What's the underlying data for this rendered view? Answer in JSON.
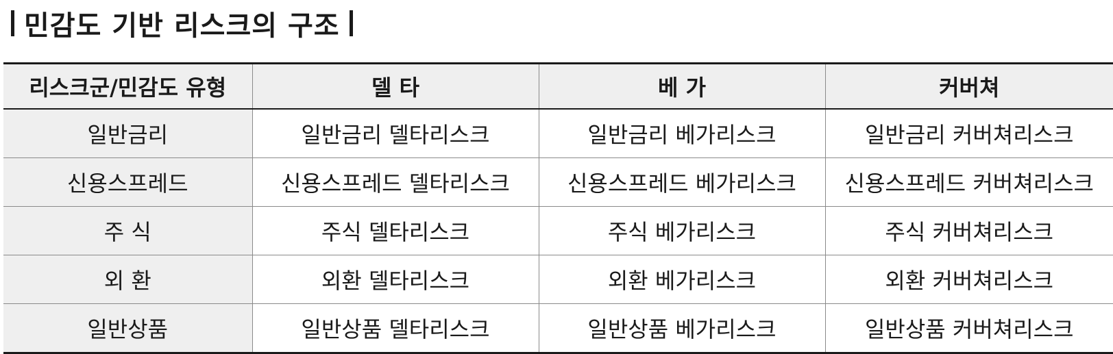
{
  "title": "민감도 기반 리스크의 구조",
  "table": {
    "headers": [
      "리스크군/민감도 유형",
      "델 타",
      "베 가",
      "커버쳐"
    ],
    "rows": [
      [
        "일반금리",
        "일반금리 델타리스크",
        "일반금리 베가리스크",
        "일반금리 커버쳐리스크"
      ],
      [
        "신용스프레드",
        "신용스프레드 델타리스크",
        "신용스프레드 베가리스크",
        "신용스프레드 커버쳐리스크"
      ],
      [
        "주 식",
        "주식 델타리스크",
        "주식 베가리스크",
        "주식 커버쳐리스크"
      ],
      [
        "외 환",
        "외환 델타리스크",
        "외환 베가리스크",
        "외환 커버쳐리스크"
      ],
      [
        "일반상품",
        "일반상품 델타리스크",
        "일반상품 베가리스크",
        "일반상품 커버쳐리스크"
      ]
    ]
  },
  "colors": {
    "header_bg": "#efefef",
    "label_bg": "#efefef",
    "text": "#1a1a1a",
    "rule": "#1a1a1a",
    "grid": "#8a8a8a"
  }
}
